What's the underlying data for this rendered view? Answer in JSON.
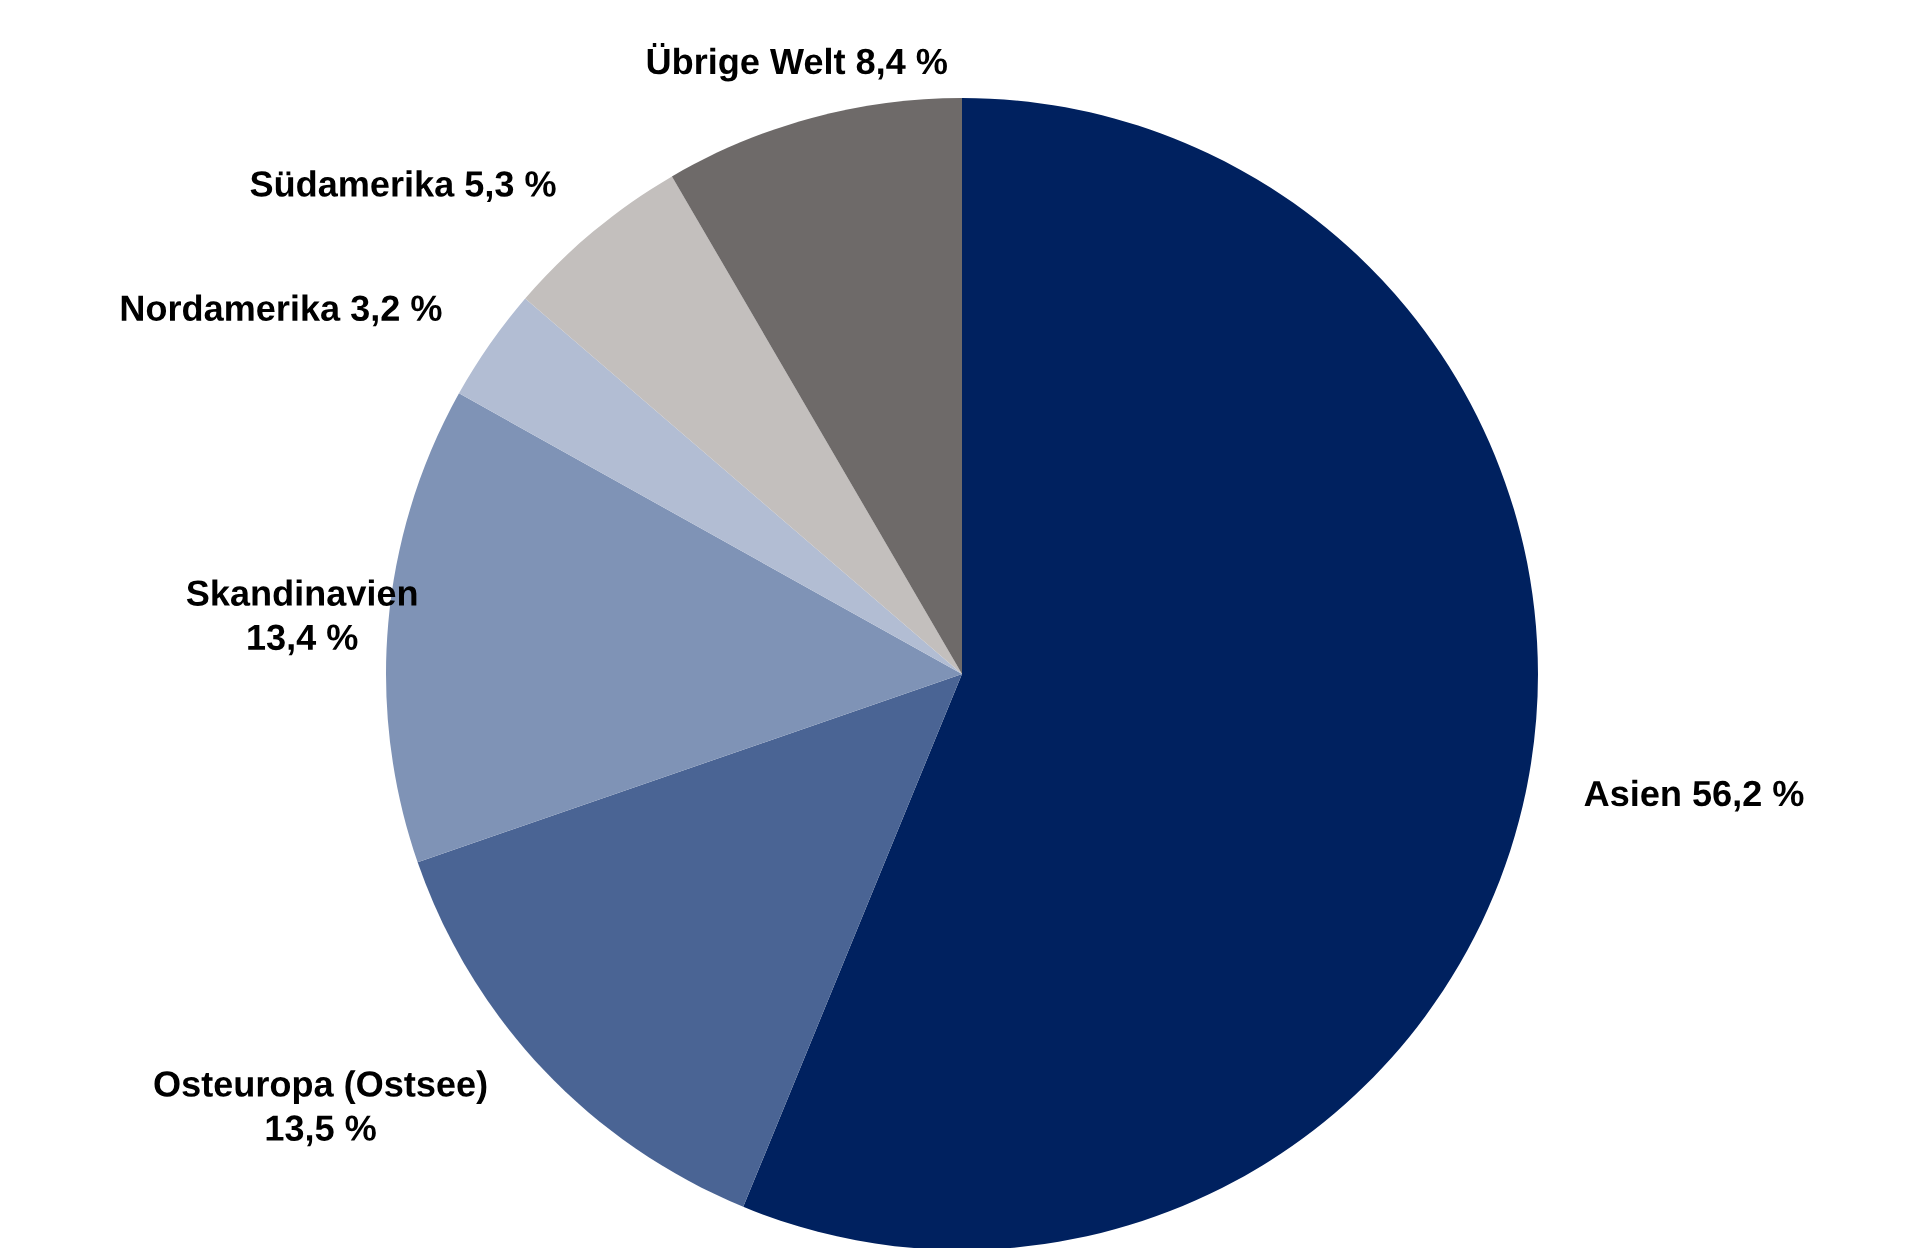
{
  "chart_data": {
    "type": "pie",
    "categories": [
      "Asien",
      "Osteuropa (Ostsee)",
      "Skandinavien",
      "Nordamerika",
      "Südamerika",
      "Übrige Welt"
    ],
    "values": [
      56.2,
      13.5,
      13.4,
      3.2,
      5.3,
      8.4
    ],
    "value_labels": [
      "56,2 %",
      "13,5 %",
      "13,4 %",
      "3,2 %",
      "5,3 %",
      "8,4 %"
    ],
    "colors": [
      "#00215f",
      "#4a6494",
      "#7f93b6",
      "#b2bdd3",
      "#c3bfbd",
      "#6e6a69"
    ],
    "legend": false
  }
}
